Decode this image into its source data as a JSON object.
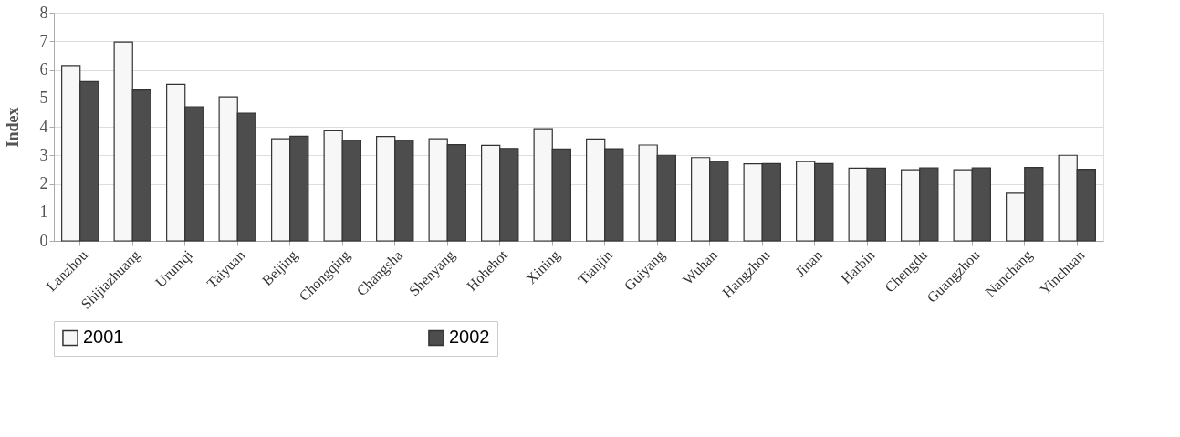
{
  "chart_data": {
    "type": "bar",
    "ylabel": "Index",
    "categories": [
      "Lanzhou",
      "Shijiazhuang",
      "Urumqi",
      "Taiyuan",
      "Beijing",
      "Chongqing",
      "Changsha",
      "Shenyang",
      "Hohehot",
      "Xining",
      "Tianjin",
      "Guiyang",
      "Wuhan",
      "Hangzhou",
      "Jinan",
      "Harbin",
      "Chengdu",
      "Guangzhou",
      "Nanchang",
      "Yinchuan"
    ],
    "series": [
      {
        "name": "2001",
        "color": "#f7f7f7",
        "values": [
          6.15,
          6.97,
          5.49,
          5.05,
          3.58,
          3.86,
          3.66,
          3.58,
          3.35,
          3.93,
          3.57,
          3.36,
          2.92,
          2.7,
          2.78,
          2.55,
          2.49,
          2.49,
          1.67,
          3.0
        ]
      },
      {
        "name": "2002",
        "color": "#4d4d4d",
        "values": [
          5.59,
          5.29,
          4.7,
          4.48,
          3.67,
          3.53,
          3.53,
          3.37,
          3.24,
          3.22,
          3.23,
          3.0,
          2.78,
          2.71,
          2.71,
          2.55,
          2.56,
          2.56,
          2.57,
          2.51
        ]
      }
    ],
    "ylim": [
      0,
      8
    ],
    "yticks": [
      0,
      1,
      2,
      3,
      4,
      5,
      6,
      7,
      8
    ],
    "grid": "y",
    "legend": "bottom"
  }
}
